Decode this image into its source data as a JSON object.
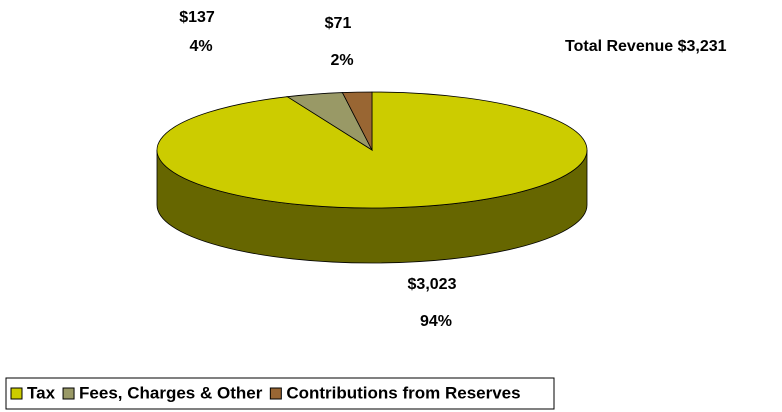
{
  "chart_data": {
    "type": "pie3d",
    "annotation": "Total Revenue $3,231",
    "categories": [
      "Tax",
      "Fees, Charges & Other",
      "Contributions from Reserves"
    ],
    "values": [
      3023,
      137,
      71
    ],
    "value_labels": [
      "$3,023",
      "$137",
      "$71"
    ],
    "percents": [
      94,
      4,
      2
    ],
    "percent_labels": [
      "94%",
      "4%",
      "2%"
    ],
    "colors": [
      "#cccc00",
      "#999966",
      "#996633"
    ],
    "side_colors": [
      "#666600",
      "#666644",
      "#6b4422"
    ]
  }
}
